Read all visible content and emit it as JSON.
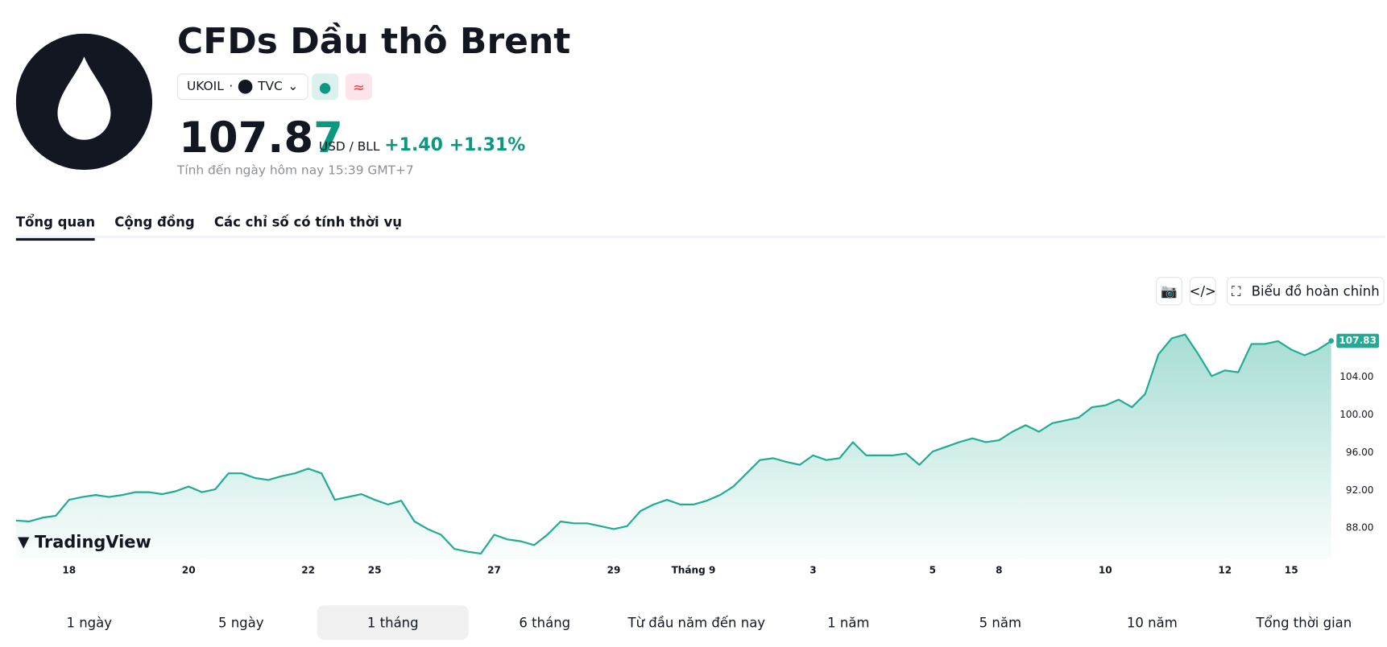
{
  "header": {
    "title": "CFDs Dầu thô Brent",
    "symbol": "UKOIL",
    "exchange": "TVC",
    "price_main": "107.8",
    "price_last_digit": "7",
    "unit": "USD / BLL",
    "change": "+1.40",
    "change_pct": "+1.31%",
    "timestamp": "Tính đến ngày hôm nay 15:39 GMT+7"
  },
  "tabs": [
    "Tổng quan",
    "Cộng đồng",
    "Các chỉ số có tính thời vụ"
  ],
  "toolbar": {
    "full_chart": "Biểu đồ hoàn chỉnh"
  },
  "logo": "TradingView",
  "chart_data": {
    "type": "area",
    "color": "#22ab94",
    "categories": [
      null,
      null,
      null,
      null,
      "18",
      null,
      null,
      null,
      null,
      null,
      null,
      null,
      null,
      "20",
      null,
      null,
      null,
      null,
      null,
      null,
      null,
      null,
      "22",
      null,
      null,
      null,
      null,
      "25",
      null,
      null,
      null,
      null,
      null,
      null,
      null,
      null,
      "27",
      null,
      null,
      null,
      null,
      null,
      null,
      null,
      null,
      "29",
      null,
      null,
      null,
      null,
      null,
      "Tháng 9",
      null,
      null,
      null,
      null,
      null,
      null,
      null,
      null,
      "3",
      null,
      null,
      null,
      null,
      null,
      null,
      null,
      null,
      "5",
      null,
      null,
      null,
      null,
      "8",
      null,
      null,
      null,
      null,
      null,
      null,
      null,
      "10",
      null,
      null,
      null,
      null,
      null,
      null,
      null,
      null,
      "12",
      null,
      null,
      null,
      null,
      "15",
      null,
      null,
      null
    ],
    "values": [
      88.8,
      88.7,
      89.1,
      89.3,
      91.0,
      91.3,
      91.5,
      91.3,
      91.5,
      91.8,
      91.8,
      91.6,
      91.9,
      92.4,
      91.8,
      92.1,
      93.8,
      93.8,
      93.3,
      93.1,
      93.5,
      93.8,
      94.3,
      93.8,
      91.0,
      91.3,
      91.6,
      91.0,
      90.5,
      90.9,
      88.7,
      87.9,
      87.3,
      85.8,
      85.5,
      85.3,
      87.3,
      86.8,
      86.6,
      86.2,
      87.3,
      88.7,
      88.5,
      88.5,
      88.2,
      87.9,
      88.2,
      89.8,
      90.5,
      91.0,
      90.5,
      90.5,
      90.9,
      91.5,
      92.4,
      93.8,
      95.2,
      95.4,
      95.0,
      94.7,
      95.7,
      95.2,
      95.4,
      97.1,
      95.7,
      95.7,
      95.7,
      95.9,
      94.7,
      96.1,
      96.6,
      97.1,
      97.5,
      97.1,
      97.3,
      98.2,
      98.9,
      98.2,
      99.1,
      99.4,
      99.7,
      100.8,
      101.0,
      101.6,
      100.8,
      102.2,
      106.4,
      108.1,
      108.5,
      106.4,
      104.1,
      104.7,
      104.5,
      107.5,
      107.5,
      107.8,
      106.9,
      106.3,
      106.9,
      107.8
    ],
    "last_value": 107.83,
    "ylim": [
      84.7,
      111.5
    ],
    "yticks": [
      {
        "value": 88,
        "label": "88.00"
      },
      {
        "value": 92,
        "label": "92.00"
      },
      {
        "value": 96,
        "label": "96.00"
      },
      {
        "value": 100,
        "label": "100.00"
      },
      {
        "value": 104,
        "label": "104.00"
      }
    ]
  },
  "ranges": {
    "items": [
      "1 ngày",
      "5 ngày",
      "1 tháng",
      "6 tháng",
      "Từ đầu năm đến nay",
      "1 năm",
      "5 năm",
      "10 năm",
      "Tổng thời gian"
    ],
    "selected": 2
  }
}
